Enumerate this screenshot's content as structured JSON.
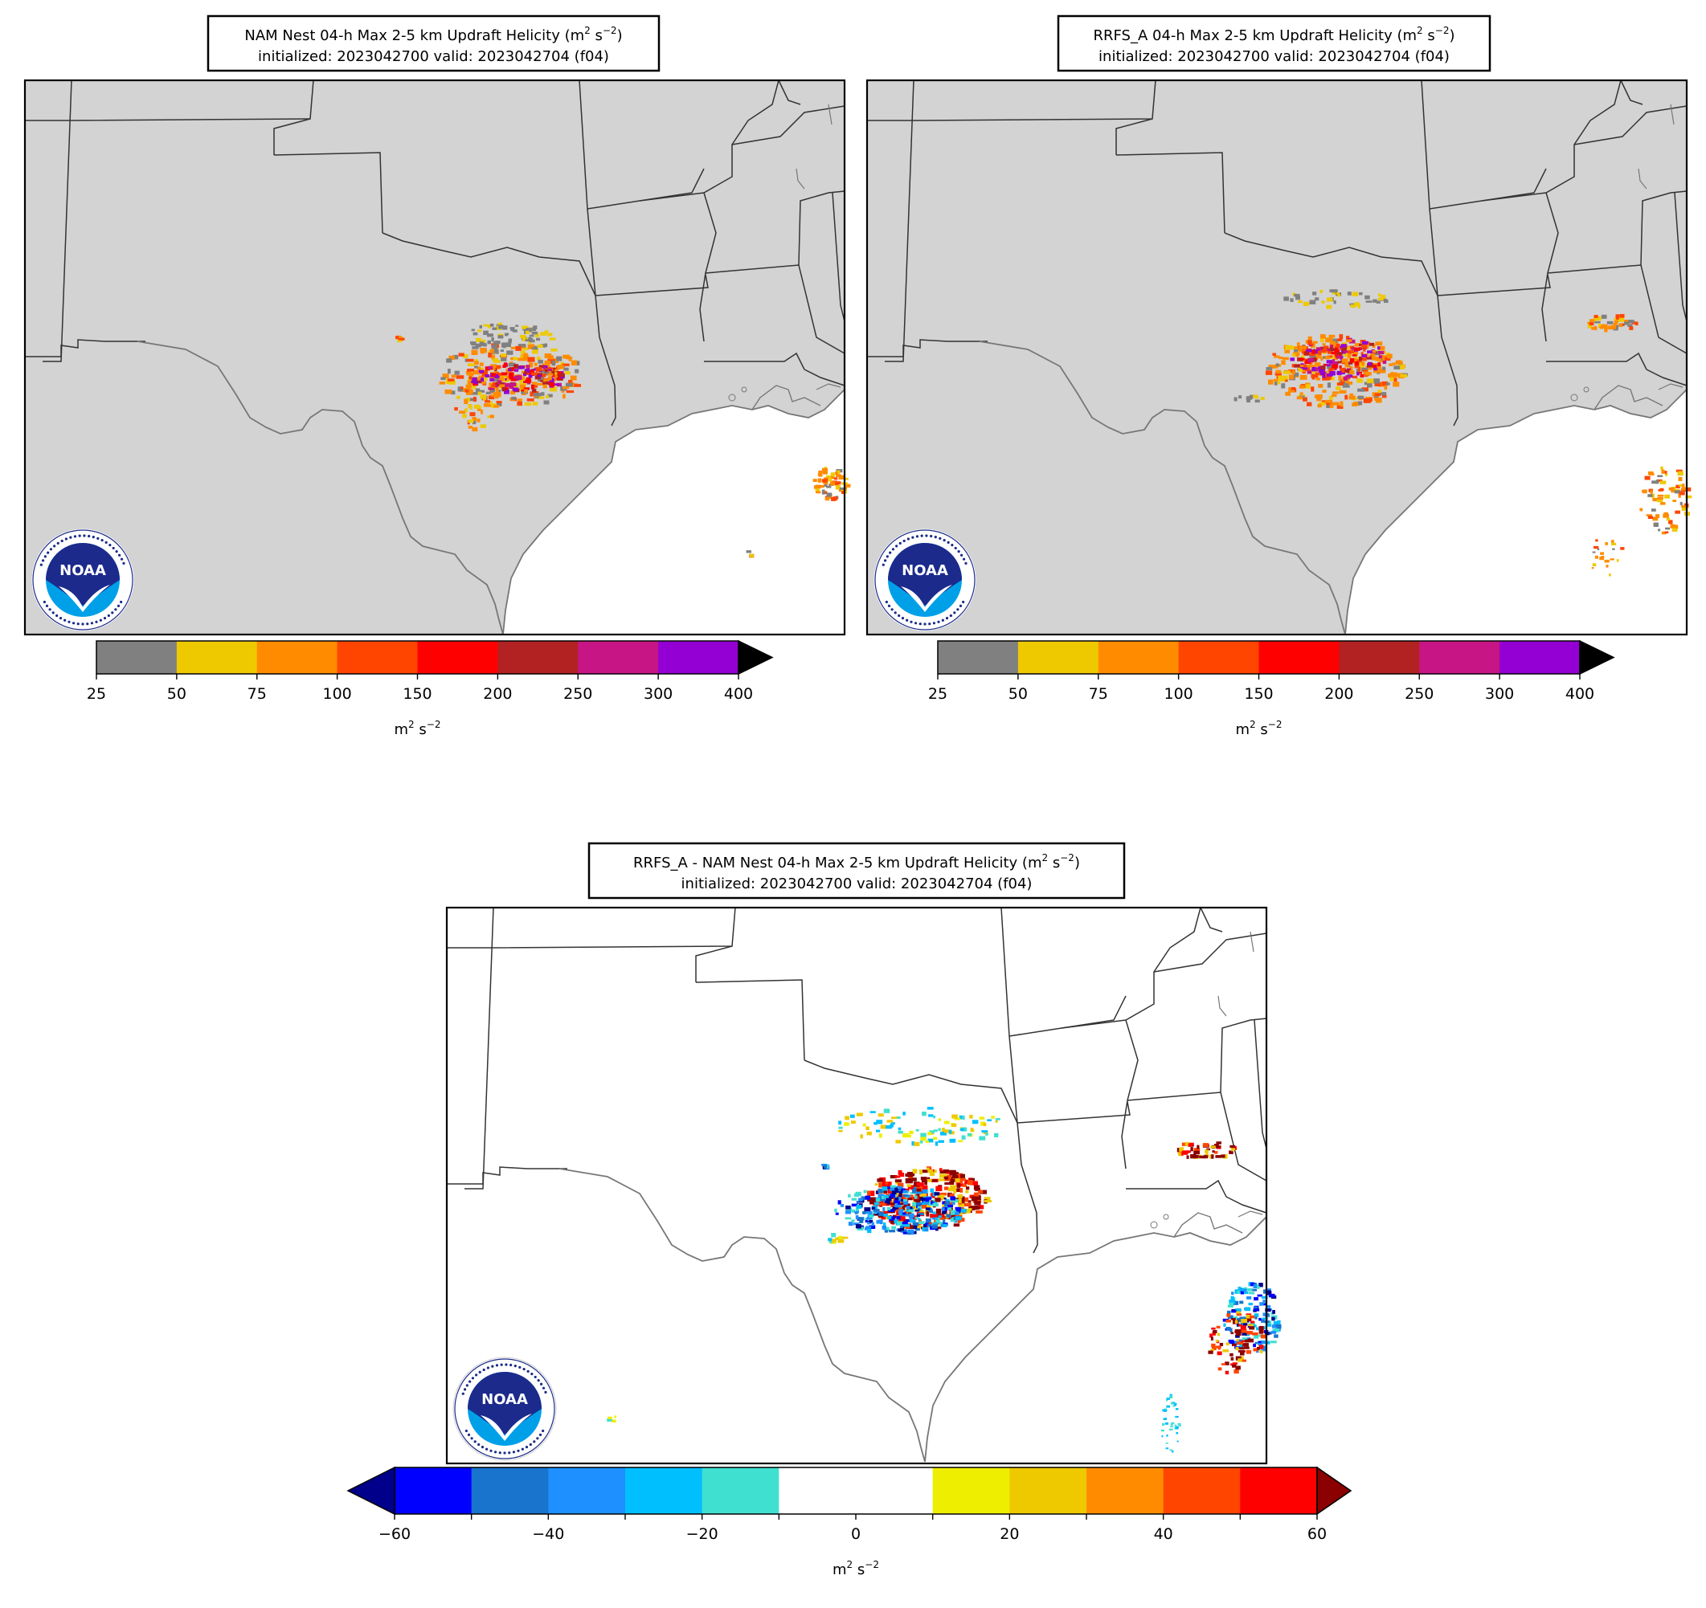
{
  "panels": [
    {
      "id": "nam",
      "title_line1": "NAM Nest 04-h Max 2-5 km Updraft Helicity (m",
      "title_sup1": "2",
      "title_mid": " s",
      "title_sup2": "−2",
      "title_end": ")",
      "title_line2": "initialized: 2023042700 valid: 2023042704 (f04)"
    },
    {
      "id": "rrfs",
      "title_line1": "RRFS_A 04-h Max 2-5 km Updraft Helicity (m",
      "title_sup1": "2",
      "title_mid": " s",
      "title_sup2": "−2",
      "title_end": ")",
      "title_line2": "initialized: 2023042700 valid: 2023042704 (f04)"
    },
    {
      "id": "diff",
      "title_line1": "RRFS_A - NAM Nest 04-h Max 2-5 km Updraft Helicity (m",
      "title_sup1": "2",
      "title_mid": " s",
      "title_sup2": "−2",
      "title_end": ")",
      "title_line2": "initialized: 2023042700 valid: 2023042704 (f04)"
    }
  ],
  "colorbar_uh": {
    "bounds": [
      "25",
      "50",
      "75",
      "100",
      "150",
      "200",
      "250",
      "300",
      "400"
    ],
    "colors": [
      "#808080",
      "#eec900",
      "#ff8c00",
      "#ff4500",
      "#ff0000",
      "#b22222",
      "#c71585",
      "#9400d3"
    ],
    "extend_color": "#000000",
    "unit": "m",
    "unit_sup": "2",
    "unit_mid": " s",
    "unit_sup2": "−2"
  },
  "colorbar_diff": {
    "bounds": [
      "−60",
      "−50",
      "−40",
      "−30",
      "−20",
      "−10",
      "0",
      "10",
      "20",
      "30",
      "40",
      "50",
      "60"
    ],
    "labels": [
      "−60",
      "",
      "−40",
      "",
      "−20",
      "",
      "0",
      "",
      "20",
      "",
      "40",
      "",
      "60"
    ],
    "colors": [
      "#0000ff",
      "#1874cd",
      "#1e90ff",
      "#00bfff",
      "#40e0d0",
      "#ffffff",
      "#ffffff",
      "#eeee00",
      "#eec900",
      "#ff8c00",
      "#ff4500",
      "#ff0000"
    ],
    "under_color": "#00008b",
    "over_color": "#8b0000",
    "unit": "m",
    "unit_sup": "2",
    "unit_mid": " s",
    "unit_sup2": "−2"
  },
  "logo": {
    "text": "NOAA",
    "ring_top": "NATIONAL OCEANIC AND ATMOSPHERIC ADMINISTRATION",
    "ring_bottom": "U.S. DEPARTMENT OF COMMERCE"
  },
  "colors": {
    "land_fill": "#d3d3d3",
    "water_fill": "#ffffff",
    "border": "#333333",
    "coast": "#777777"
  }
}
